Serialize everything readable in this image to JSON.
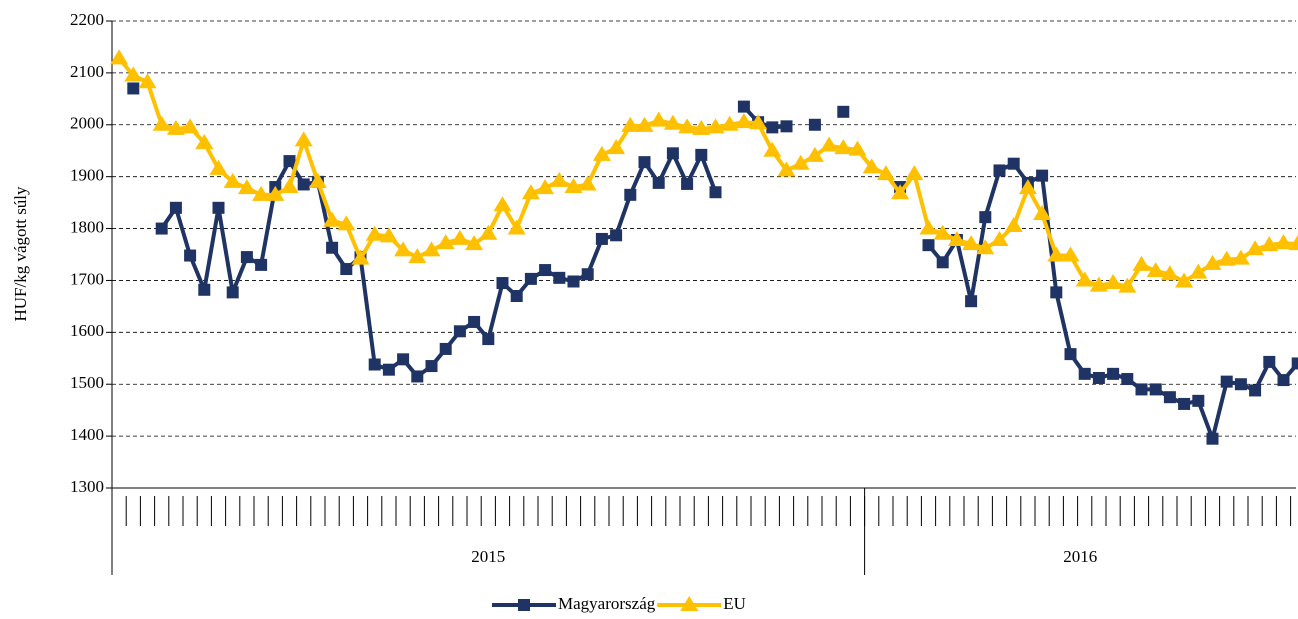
{
  "chart_data": {
    "type": "line",
    "ylabel": "HUF/kg vágott súly",
    "categories": [
      null,
      null,
      null,
      null,
      null,
      null,
      null,
      null,
      null,
      null,
      null,
      null,
      null,
      null,
      null,
      null,
      null,
      null,
      null,
      null,
      null,
      null,
      null,
      null,
      null,
      null,
      null,
      null,
      null,
      null,
      null,
      null,
      null,
      null,
      null,
      null,
      null,
      null,
      null,
      null,
      null,
      null,
      null,
      null,
      null,
      null,
      null,
      null,
      null,
      null,
      null,
      null,
      null,
      null,
      null,
      null,
      null,
      null,
      null,
      null,
      null,
      null,
      null,
      null,
      null,
      null,
      null,
      null,
      null,
      null,
      null,
      null,
      null,
      null,
      null,
      null,
      null,
      null,
      null,
      null,
      null,
      null,
      null,
      null
    ],
    "x_groups": [
      {
        "label": "2015",
        "count": 53
      },
      {
        "label": "2016",
        "count": 31
      }
    ],
    "series": [
      {
        "name": "Magyarország",
        "color": "#1f3464",
        "marker": "square",
        "values": [
          null,
          2070,
          null,
          1800,
          1840,
          1748,
          1682,
          1840,
          1677,
          1745,
          1730,
          1880,
          1930,
          1885,
          1890,
          1763,
          1722,
          1745,
          1538,
          1528,
          1548,
          1515,
          1535,
          1568,
          1602,
          1620,
          1587,
          1695,
          1670,
          1703,
          1720,
          1705,
          1698,
          1712,
          1780,
          1787,
          1865,
          1928,
          1888,
          1945,
          1886,
          1942,
          1870,
          null,
          2035,
          2005,
          1995,
          1997,
          null,
          2000,
          null,
          2025,
          null,
          null,
          null,
          1880,
          null,
          1768,
          1735,
          1778,
          1660,
          1822,
          1912,
          1925,
          1888,
          1902,
          1677,
          1558,
          1520,
          1512,
          1520,
          1510,
          1490,
          1490,
          1475,
          1462,
          1468,
          1395,
          1505,
          1500,
          1488,
          1543,
          1508,
          1540
        ]
      },
      {
        "name": "EU",
        "color": "#ffc000",
        "marker": "triangle",
        "values": [
          2128,
          2095,
          2082,
          2000,
          1992,
          1995,
          1965,
          1915,
          1890,
          1878,
          1865,
          1865,
          1880,
          1970,
          1890,
          1815,
          1808,
          1742,
          1788,
          1785,
          1758,
          1745,
          1758,
          1772,
          1780,
          1770,
          1790,
          1845,
          1800,
          1868,
          1878,
          1892,
          1880,
          1885,
          1942,
          1955,
          1998,
          1998,
          2008,
          2002,
          1995,
          1992,
          1995,
          2000,
          2005,
          2003,
          1950,
          1912,
          1925,
          1940,
          1960,
          1955,
          1952,
          1918,
          1905,
          1868,
          1905,
          1800,
          1790,
          1778,
          1770,
          1762,
          1778,
          1805,
          1878,
          1828,
          1748,
          1748,
          1700,
          1690,
          1695,
          1688,
          1730,
          1718,
          1712,
          1698,
          1715,
          1732,
          1740,
          1742,
          1760,
          1768,
          1772,
          1770
        ]
      }
    ],
    "ylim": [
      1300,
      2200
    ],
    "yticks": [
      1300,
      1400,
      1500,
      1600,
      1700,
      1800,
      1900,
      2000,
      2100,
      2200
    ],
    "grid": true,
    "legend": "bottom"
  }
}
